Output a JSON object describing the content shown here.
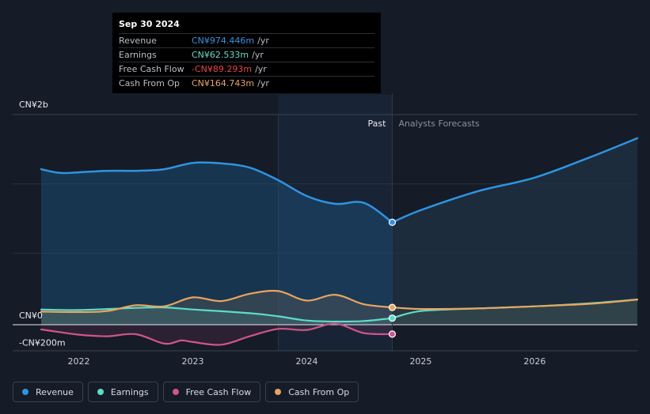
{
  "chart_data": {
    "type": "line",
    "title": "",
    "xlabel": "",
    "ylabel": "",
    "ylim": [
      -200,
      2000
    ],
    "x_ticks": [
      {
        "t": 2022,
        "label": "2022"
      },
      {
        "t": 2023,
        "label": "2023"
      },
      {
        "t": 2024,
        "label": "2024"
      },
      {
        "t": 2025,
        "label": "2025"
      },
      {
        "t": 2026,
        "label": "2026"
      }
    ],
    "x_range": [
      2021.42,
      2026.9
    ],
    "y_ticks": [
      {
        "v": 2000,
        "label": "CN¥2b"
      },
      {
        "v": 0,
        "label": "CN¥0"
      },
      {
        "v": -200,
        "label": "-CN¥200m"
      }
    ],
    "past_label": "Past",
    "forecast_label": "Analysts Forecasts",
    "split_t": 2024.75,
    "shade_start_t": 2023.75,
    "series": [
      {
        "name": "Revenue",
        "color": "#2f94e0",
        "points": [
          [
            2021.67,
            1480
          ],
          [
            2021.83,
            1445
          ],
          [
            2022.0,
            1450
          ],
          [
            2022.25,
            1465
          ],
          [
            2022.5,
            1465
          ],
          [
            2022.75,
            1480
          ],
          [
            2023.0,
            1540
          ],
          [
            2023.25,
            1535
          ],
          [
            2023.5,
            1495
          ],
          [
            2023.75,
            1375
          ],
          [
            2024.0,
            1225
          ],
          [
            2024.25,
            1150
          ],
          [
            2024.5,
            1160
          ],
          [
            2024.75,
            974.446
          ]
        ],
        "forecast": [
          [
            2024.75,
            974.446
          ],
          [
            2025.0,
            1090
          ],
          [
            2025.5,
            1270
          ],
          [
            2026.0,
            1400
          ],
          [
            2026.5,
            1600
          ],
          [
            2026.9,
            1775
          ]
        ]
      },
      {
        "name": "Earnings",
        "color": "#5ddcc8",
        "points": [
          [
            2021.67,
            145
          ],
          [
            2022.0,
            140
          ],
          [
            2022.5,
            160
          ],
          [
            2022.75,
            165
          ],
          [
            2023.0,
            145
          ],
          [
            2023.5,
            110
          ],
          [
            2023.75,
            80
          ],
          [
            2024.0,
            40
          ],
          [
            2024.25,
            30
          ],
          [
            2024.5,
            35
          ],
          [
            2024.75,
            62.533
          ]
        ],
        "forecast": [
          [
            2024.75,
            62.533
          ],
          [
            2025.0,
            130
          ],
          [
            2025.5,
            155
          ],
          [
            2026.0,
            175
          ],
          [
            2026.5,
            205
          ],
          [
            2026.9,
            240
          ]
        ]
      },
      {
        "name": "Free Cash Flow",
        "color": "#d1558c",
        "points": [
          [
            2021.67,
            -45
          ],
          [
            2021.83,
            -70
          ],
          [
            2022.0,
            -95
          ],
          [
            2022.25,
            -110
          ],
          [
            2022.5,
            -90
          ],
          [
            2022.75,
            -180
          ],
          [
            2022.9,
            -150
          ],
          [
            2023.0,
            -165
          ],
          [
            2023.25,
            -190
          ],
          [
            2023.5,
            -110
          ],
          [
            2023.75,
            -40
          ],
          [
            2024.0,
            -50
          ],
          [
            2024.25,
            10
          ],
          [
            2024.5,
            -80
          ],
          [
            2024.75,
            -89.293
          ]
        ],
        "forecast": []
      },
      {
        "name": "Cash From Op",
        "color": "#e8a55e",
        "points": [
          [
            2021.67,
            125
          ],
          [
            2022.0,
            120
          ],
          [
            2022.25,
            130
          ],
          [
            2022.5,
            185
          ],
          [
            2022.75,
            175
          ],
          [
            2023.0,
            260
          ],
          [
            2023.25,
            225
          ],
          [
            2023.5,
            295
          ],
          [
            2023.75,
            320
          ],
          [
            2024.0,
            230
          ],
          [
            2024.25,
            285
          ],
          [
            2024.5,
            195
          ],
          [
            2024.75,
            164.743
          ]
        ],
        "forecast": [
          [
            2024.75,
            164.743
          ],
          [
            2025.0,
            150
          ],
          [
            2025.5,
            155
          ],
          [
            2026.0,
            175
          ],
          [
            2026.5,
            200
          ],
          [
            2026.9,
            240
          ]
        ]
      }
    ]
  },
  "tooltip": {
    "date": "Sep 30 2024",
    "unit": "/yr",
    "rows": [
      {
        "label": "Revenue",
        "value": "CN¥974.446m",
        "color": "#2f94e0"
      },
      {
        "label": "Earnings",
        "value": "CN¥62.533m",
        "color": "#5ddcc8"
      },
      {
        "label": "Free Cash Flow",
        "value": "-CN¥89.293m",
        "color": "#e8424e"
      },
      {
        "label": "Cash From Op",
        "value": "CN¥164.743m",
        "color": "#e8a55e"
      }
    ]
  },
  "legend": [
    {
      "label": "Revenue",
      "color": "#2f94e0"
    },
    {
      "label": "Earnings",
      "color": "#5ddcc8"
    },
    {
      "label": "Free Cash Flow",
      "color": "#d1558c"
    },
    {
      "label": "Cash From Op",
      "color": "#e8a55e"
    }
  ]
}
